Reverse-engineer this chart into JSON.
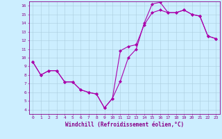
{
  "xlabel": "Windchill (Refroidissement éolien,°C)",
  "bg_color": "#cceeff",
  "line_color": "#aa00aa",
  "grid_color": "#aaccdd",
  "xlim": [
    -0.5,
    23.5
  ],
  "ylim": [
    3.5,
    16.5
  ],
  "yticks": [
    4,
    5,
    6,
    7,
    8,
    9,
    10,
    11,
    12,
    13,
    14,
    15,
    16
  ],
  "xticks": [
    0,
    1,
    2,
    3,
    4,
    5,
    6,
    7,
    8,
    9,
    10,
    11,
    12,
    13,
    14,
    15,
    16,
    17,
    18,
    19,
    20,
    21,
    22,
    23
  ],
  "line1_x": [
    0,
    1,
    2,
    3,
    4,
    5,
    6,
    7,
    8,
    9,
    10,
    11,
    12,
    13,
    14,
    15,
    16,
    17,
    18,
    19,
    20,
    21,
    22,
    23
  ],
  "line1_y": [
    9.5,
    8.0,
    8.5,
    8.5,
    7.2,
    7.2,
    6.3,
    6.0,
    5.8,
    4.2,
    5.3,
    7.3,
    10.0,
    11.0,
    14.0,
    16.2,
    16.4,
    15.2,
    15.2,
    15.5,
    15.0,
    14.8,
    12.5,
    12.2
  ],
  "line2_x": [
    0,
    1,
    2,
    3,
    4,
    5,
    6,
    7,
    8,
    9,
    10,
    11,
    12,
    13,
    14,
    15,
    16,
    17,
    18,
    19,
    20,
    21,
    22,
    23
  ],
  "line2_y": [
    9.5,
    8.0,
    8.5,
    8.5,
    7.2,
    7.2,
    6.3,
    6.0,
    5.8,
    4.2,
    5.3,
    10.8,
    11.3,
    11.5,
    13.8,
    15.2,
    15.5,
    15.2,
    15.2,
    15.5,
    15.0,
    14.8,
    12.5,
    12.2
  ],
  "marker": "D",
  "markersize": 2.0,
  "linewidth": 0.8,
  "tick_fontsize": 4.5,
  "xlabel_fontsize": 5.5,
  "axis_label_color": "#880088",
  "tick_color": "#880088",
  "spine_color": "#880088"
}
